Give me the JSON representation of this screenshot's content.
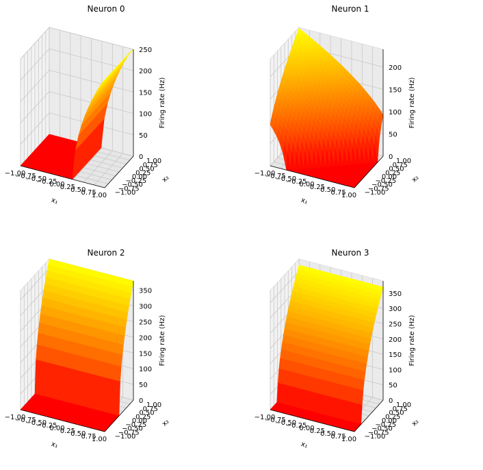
{
  "chart_data": [
    {
      "type": "surface3d",
      "title": "Neuron 0",
      "xlabel": "x₁",
      "ylabel": "x₂",
      "zlabel": "Firing rate (Hz)",
      "xlim": [
        -1,
        1
      ],
      "ylim": [
        -1,
        1
      ],
      "zlim": [
        0,
        250
      ],
      "x_ticks": [
        "−1.00",
        "−0.75",
        "−0.50",
        "−0.25",
        "0.00",
        "0.25",
        "0.50",
        "0.75",
        "1.00"
      ],
      "y_ticks": [
        "−1.00",
        "−0.75",
        "−0.50",
        "−0.25",
        "0.00",
        "0.25",
        "0.50",
        "0.75",
        "1.00"
      ],
      "z_ticks": [
        0,
        50,
        100,
        150,
        200,
        250
      ],
      "z_tick_labels": [
        "0",
        "50",
        "100",
        "150",
        "200",
        "250"
      ],
      "model": {
        "encoder": [
          1,
          0
        ],
        "threshold": 0.25,
        "max_rate": 255,
        "at": 1.0
      },
      "colormap": [
        "#ff0000",
        "#ffff00"
      ],
      "grid": true
    },
    {
      "type": "surface3d",
      "title": "Neuron 1",
      "xlabel": "x₁",
      "ylabel": "x₂",
      "zlabel": "Firing rate (Hz)",
      "xlim": [
        -1,
        1
      ],
      "ylim": [
        -1,
        1
      ],
      "zlim": [
        0,
        240
      ],
      "x_ticks": [
        "−1.00",
        "−0.75",
        "−0.50",
        "−0.25",
        "0.00",
        "0.25",
        "0.50",
        "0.75",
        "1.00"
      ],
      "y_ticks": [
        "−1.00",
        "−0.75",
        "−0.50",
        "−0.25",
        "0.00",
        "0.25",
        "0.50",
        "0.75",
        "1.00"
      ],
      "z_ticks": [
        0,
        50,
        100,
        150,
        200
      ],
      "z_tick_labels": [
        "0",
        "50",
        "100",
        "150",
        "200"
      ],
      "model": {
        "encoder": [
          -0.7,
          0.7
        ],
        "threshold": -0.25,
        "max_rate": 238,
        "at": 1.4
      },
      "colormap": [
        "#ff0000",
        "#ffff00"
      ],
      "grid": true
    },
    {
      "type": "surface3d",
      "title": "Neuron 2",
      "xlabel": "x₁",
      "ylabel": "x₂",
      "zlabel": "Firing rate (Hz)",
      "xlim": [
        -1,
        1
      ],
      "ylim": [
        -1,
        1
      ],
      "zlim": [
        0,
        380
      ],
      "x_ticks": [
        "−1.00",
        "−0.75",
        "−0.50",
        "−0.25",
        "0.00",
        "0.25",
        "0.50",
        "0.75",
        "1.00"
      ],
      "y_ticks": [
        "−1.00",
        "−0.75",
        "−0.50",
        "−0.25",
        "0.00",
        "0.25",
        "0.50",
        "0.75",
        "1.00"
      ],
      "z_ticks": [
        0,
        50,
        100,
        150,
        200,
        250,
        300,
        350
      ],
      "z_tick_labels": [
        "0",
        "50",
        "100",
        "150",
        "200",
        "250",
        "300",
        "350"
      ],
      "model": {
        "encoder": [
          0,
          1
        ],
        "threshold": 0.0,
        "max_rate": 380,
        "at": 1.0
      },
      "colormap": [
        "#ff0000",
        "#ffff00"
      ],
      "grid": true
    },
    {
      "type": "surface3d",
      "title": "Neuron 3",
      "xlabel": "x₁",
      "ylabel": "x₂",
      "zlabel": "Firing rate (Hz)",
      "xlim": [
        -1,
        1
      ],
      "ylim": [
        -1,
        1
      ],
      "zlim": [
        0,
        390
      ],
      "x_ticks": [
        "−1.00",
        "−0.75",
        "−0.50",
        "−0.25",
        "0.00",
        "0.25",
        "0.50",
        "0.75",
        "1.00"
      ],
      "y_ticks": [
        "−1.00",
        "−0.75",
        "−0.50",
        "−0.25",
        "0.00",
        "0.25",
        "0.50",
        "0.75",
        "1.00"
      ],
      "z_ticks": [
        0,
        50,
        100,
        150,
        200,
        250,
        300,
        350
      ],
      "z_tick_labels": [
        "0",
        "50",
        "100",
        "150",
        "200",
        "250",
        "300",
        "350"
      ],
      "model": {
        "encoder": [
          0,
          1
        ],
        "threshold": -0.5,
        "max_rate": 370,
        "at": 1.0
      },
      "colormap": [
        "#ff0000",
        "#ffff00"
      ],
      "grid": true
    }
  ]
}
